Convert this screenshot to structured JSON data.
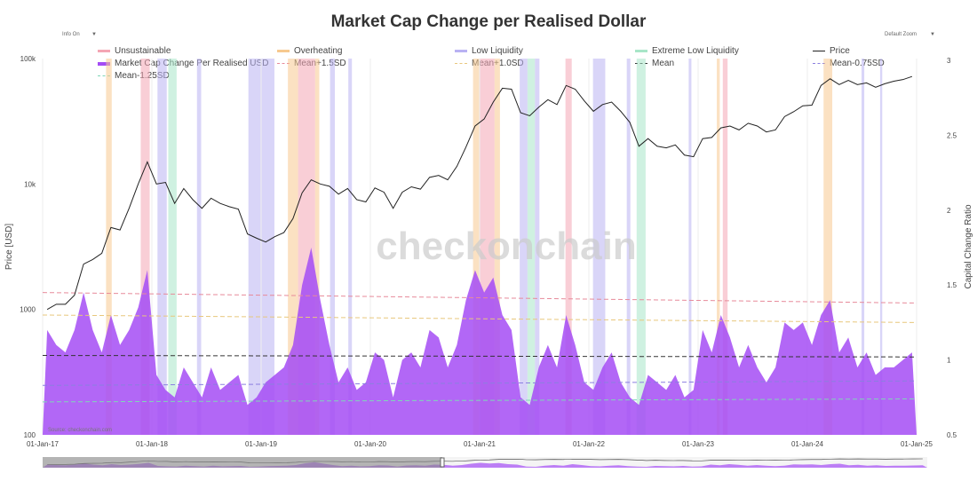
{
  "header": {
    "title": "Market Cap Change per Realised Dollar",
    "info_label": "Info On",
    "zoom_label": "Default Zoom"
  },
  "source": "Source: checkonchain.com",
  "watermark": "checkonchain",
  "chart_data": {
    "type": "line",
    "title": "Market Cap Change per Realised Dollar",
    "ylabel": "Price [USD]",
    "y2label": "Capital Change Ratio",
    "ylim": [
      100,
      100000
    ],
    "yscale": "log",
    "y2lim": [
      0.5,
      3
    ],
    "xlim": [
      "2017-01-01",
      "2025-01-01"
    ],
    "xticks": [
      "01-Jan-17",
      "01-Jan-18",
      "01-Jan-19",
      "01-Jan-20",
      "01-Jan-21",
      "01-Jan-22",
      "01-Jan-23",
      "01-Jan-24",
      "01-Jan-25"
    ],
    "yticks": [
      "100",
      "1000",
      "10k",
      "100k"
    ],
    "y2ticks": [
      "0.5",
      "1",
      "1.5",
      "2",
      "2.5",
      "3"
    ],
    "legend": [
      {
        "name": "Unsustainable",
        "color": "#f4a6b4",
        "style": "band"
      },
      {
        "name": "Overheating",
        "color": "#f7c98f",
        "style": "band"
      },
      {
        "name": "Low Liquidity",
        "color": "#b9b2f3",
        "style": "band"
      },
      {
        "name": "Extreme Low Liquidity",
        "color": "#a8e6c8",
        "style": "band"
      },
      {
        "name": "Price",
        "color": "#222222",
        "style": "line"
      },
      {
        "name": "Market Cap Change Per Realised USD",
        "color": "#a44cf5",
        "style": "area"
      },
      {
        "name": "Mean+1.5SD",
        "color": "#e78a9a",
        "style": "dash"
      },
      {
        "name": "Mean+1.0SD",
        "color": "#e8c77c",
        "style": "dash"
      },
      {
        "name": "Mean",
        "color": "#333333",
        "style": "dash"
      },
      {
        "name": "Mean-0.75SD",
        "color": "#8b7fe0",
        "style": "dash"
      },
      {
        "name": "Mean-1.25SD",
        "color": "#7fd6b8",
        "style": "dash"
      }
    ],
    "start": "2017-01",
    "frequency": "monthly",
    "price": [
      1000,
      1100,
      1100,
      1300,
      2300,
      2500,
      2800,
      4500,
      4300,
      6400,
      10000,
      15000,
      10000,
      10300,
      7000,
      9200,
      7500,
      6400,
      7700,
      7000,
      6600,
      6300,
      4000,
      3700,
      3450,
      3800,
      4100,
      5300,
      8500,
      10800,
      10000,
      9600,
      8300,
      9200,
      7500,
      7200,
      9300,
      8600,
      6400,
      8600,
      9500,
      9100,
      11300,
      11700,
      10800,
      13800,
      19700,
      29000,
      33000,
      45000,
      58000,
      57000,
      37000,
      35000,
      41000,
      47000,
      43000,
      61000,
      57000,
      46000,
      38000,
      43000,
      45000,
      38000,
      31000,
      20000,
      23000,
      20000,
      19400,
      20500,
      17000,
      16500,
      23000,
      23500,
      28000,
      29000,
      27000,
      30500,
      29000,
      26000,
      27000,
      34500,
      37700,
      42000,
      42500,
      61000,
      69000,
      62000,
      67000,
      62000,
      64000,
      59000,
      63000,
      66000,
      68000,
      72000
    ],
    "ratio": [
      1.2,
      1.1,
      1.05,
      1.2,
      1.45,
      1.2,
      1.05,
      1.3,
      1.1,
      1.2,
      1.35,
      1.6,
      0.9,
      0.8,
      0.75,
      0.95,
      0.85,
      0.75,
      0.95,
      0.8,
      0.85,
      0.9,
      0.7,
      0.75,
      0.85,
      0.9,
      0.95,
      1.1,
      1.5,
      1.75,
      1.4,
      1.1,
      0.85,
      0.95,
      0.8,
      0.85,
      1.05,
      1.0,
      0.75,
      1.0,
      1.05,
      0.95,
      1.2,
      1.15,
      0.95,
      1.1,
      1.4,
      1.6,
      1.45,
      1.55,
      1.3,
      1.2,
      0.75,
      0.7,
      0.95,
      1.1,
      0.95,
      1.3,
      1.1,
      0.85,
      0.8,
      0.95,
      1.05,
      0.85,
      0.75,
      0.7,
      0.9,
      0.85,
      0.8,
      0.9,
      0.75,
      0.8,
      1.2,
      1.05,
      1.3,
      1.15,
      0.95,
      1.1,
      0.95,
      0.85,
      0.95,
      1.25,
      1.2,
      1.25,
      1.1,
      1.3,
      1.4,
      1.05,
      1.15,
      0.95,
      1.05,
      0.9,
      0.95,
      0.95,
      1.0,
      1.05
    ],
    "reference_lines": {
      "Mean+1.5SD": [
        1.45,
        1.38
      ],
      "Mean+1.0SD": [
        1.3,
        1.25
      ],
      "Mean": [
        1.03,
        1.02
      ],
      "Mean-0.75SD": [
        0.83,
        0.86
      ],
      "Mean-1.25SD": [
        0.72,
        0.74
      ]
    },
    "bands": [
      {
        "type": "Overheating",
        "from": "2017-08-01",
        "to": "2017-08-20"
      },
      {
        "type": "Unsustainable",
        "from": "2017-11-25",
        "to": "2017-12-25"
      },
      {
        "type": "Low Liquidity",
        "from": "2018-01-20",
        "to": "2018-02-20"
      },
      {
        "type": "Extreme Low Liquidity",
        "from": "2018-02-25",
        "to": "2018-03-25"
      },
      {
        "type": "Low Liquidity",
        "from": "2018-06-01",
        "to": "2018-06-15"
      },
      {
        "type": "Low Liquidity",
        "from": "2018-11-20",
        "to": "2019-02-15"
      },
      {
        "type": "Overheating",
        "from": "2019-04-01",
        "to": "2019-05-05"
      },
      {
        "type": "Unsustainable",
        "from": "2019-05-05",
        "to": "2019-07-01"
      },
      {
        "type": "Overheating",
        "from": "2019-07-01",
        "to": "2019-07-15"
      },
      {
        "type": "Low Liquidity",
        "from": "2019-08-20",
        "to": "2019-09-05"
      },
      {
        "type": "Low Liquidity",
        "from": "2019-10-20",
        "to": "2019-11-01"
      },
      {
        "type": "Overheating",
        "from": "2020-12-10",
        "to": "2021-01-01"
      },
      {
        "type": "Unsustainable",
        "from": "2021-01-01",
        "to": "2021-02-20"
      },
      {
        "type": "Overheating",
        "from": "2021-02-20",
        "to": "2021-03-10"
      },
      {
        "type": "Low Liquidity",
        "from": "2021-05-15",
        "to": "2021-06-10"
      },
      {
        "type": "Extreme Low Liquidity",
        "from": "2021-06-10",
        "to": "2021-07-05"
      },
      {
        "type": "Low Liquidity",
        "from": "2021-07-05",
        "to": "2021-07-20"
      },
      {
        "type": "Unsustainable",
        "from": "2021-10-15",
        "to": "2021-11-05"
      },
      {
        "type": "Low Liquidity",
        "from": "2022-01-15",
        "to": "2022-02-25"
      },
      {
        "type": "Low Liquidity",
        "from": "2022-05-08",
        "to": "2022-05-20"
      },
      {
        "type": "Extreme Low Liquidity",
        "from": "2022-06-10",
        "to": "2022-07-10"
      },
      {
        "type": "Low Liquidity",
        "from": "2022-12-01",
        "to": "2022-12-10"
      },
      {
        "type": "Overheating",
        "from": "2023-03-05",
        "to": "2023-03-15"
      },
      {
        "type": "Unsustainable",
        "from": "2023-03-25",
        "to": "2023-04-10"
      },
      {
        "type": "Overheating",
        "from": "2024-02-25",
        "to": "2024-03-25"
      },
      {
        "type": "Low Liquidity",
        "from": "2024-07-01",
        "to": "2024-07-10"
      },
      {
        "type": "Low Liquidity",
        "from": "2024-09-01",
        "to": "2024-09-08"
      }
    ]
  }
}
